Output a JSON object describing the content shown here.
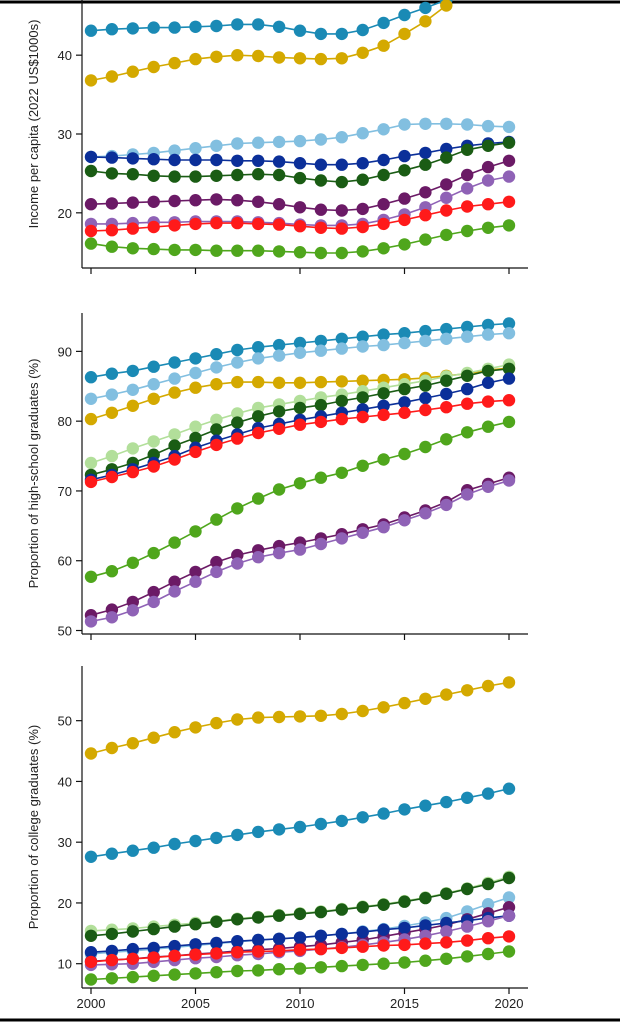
{
  "chart_data": [
    {
      "type": "line",
      "ylabel": "Income per capita (2022 US$1000s)",
      "ylim": [
        13,
        47
      ],
      "yticks": [
        20,
        30,
        40
      ],
      "xlim": [
        1999.3,
        2020.6
      ],
      "xticks": [
        2000,
        2005,
        2010,
        2015,
        2020
      ],
      "xtick_labels": [],
      "x": [
        2000,
        2001,
        2002,
        2003,
        2004,
        2005,
        2006,
        2007,
        2008,
        2009,
        2010,
        2011,
        2012,
        2013,
        2014,
        2015,
        2016,
        2017,
        2018,
        2019,
        2020
      ],
      "series": [
        {
          "color": "#1a8ab5",
          "values": [
            43.1,
            43.3,
            43.4,
            43.5,
            43.5,
            43.6,
            43.7,
            43.9,
            43.9,
            43.6,
            43.1,
            42.7,
            42.7,
            43.2,
            44.1,
            45.1,
            46.0,
            47.0,
            null,
            null,
            null
          ]
        },
        {
          "color": "#d4a900",
          "values": [
            36.8,
            37.3,
            37.9,
            38.5,
            39.0,
            39.5,
            39.8,
            40.0,
            39.9,
            39.7,
            39.6,
            39.5,
            39.6,
            40.3,
            41.2,
            42.7,
            44.3,
            46.3,
            null,
            null,
            null
          ]
        },
        {
          "color": "#82bfe0",
          "values": [
            27.1,
            27.2,
            27.4,
            27.6,
            27.9,
            28.2,
            28.5,
            28.8,
            28.9,
            29.0,
            29.1,
            29.3,
            29.6,
            30.1,
            30.6,
            31.2,
            31.3,
            31.3,
            31.2,
            31.0,
            30.9
          ]
        },
        {
          "color": "#0b2f99",
          "values": [
            27.1,
            27.0,
            26.9,
            26.8,
            26.7,
            26.7,
            26.7,
            26.6,
            26.6,
            26.5,
            26.3,
            26.1,
            26.1,
            26.3,
            26.7,
            27.2,
            27.6,
            28.1,
            28.5,
            28.8,
            29.0
          ]
        },
        {
          "color": "#1a5c14",
          "values": [
            25.3,
            25.0,
            24.9,
            24.7,
            24.6,
            24.6,
            24.7,
            24.8,
            24.9,
            24.8,
            24.4,
            24.1,
            23.9,
            24.2,
            24.8,
            25.4,
            26.1,
            27.0,
            28.0,
            28.5,
            28.9
          ]
        },
        {
          "color": "#6b1a66",
          "values": [
            21.1,
            21.2,
            21.3,
            21.4,
            21.5,
            21.6,
            21.7,
            21.6,
            21.4,
            21.1,
            20.7,
            20.4,
            20.3,
            20.5,
            21.1,
            21.8,
            22.6,
            23.6,
            24.8,
            25.8,
            26.6
          ]
        },
        {
          "color": "#8f62b6",
          "values": [
            18.6,
            18.6,
            18.7,
            18.8,
            18.8,
            18.9,
            18.9,
            18.9,
            18.8,
            18.7,
            18.5,
            18.4,
            18.4,
            18.6,
            19.1,
            19.8,
            20.7,
            21.9,
            23.1,
            24.1,
            24.6
          ]
        },
        {
          "color": "#ff1a1a",
          "values": [
            17.7,
            17.8,
            18.0,
            18.2,
            18.4,
            18.6,
            18.7,
            18.7,
            18.6,
            18.5,
            18.3,
            18.1,
            18.0,
            18.2,
            18.6,
            19.1,
            19.7,
            20.3,
            20.8,
            21.1,
            21.4
          ]
        },
        {
          "color": "#4fa61c",
          "values": [
            16.1,
            15.7,
            15.5,
            15.4,
            15.3,
            15.3,
            15.2,
            15.2,
            15.2,
            15.1,
            15.0,
            14.9,
            14.9,
            15.1,
            15.5,
            16.0,
            16.6,
            17.2,
            17.7,
            18.1,
            18.4
          ]
        }
      ]
    },
    {
      "type": "line",
      "ylabel": "Proportion of high-school graduates (%)",
      "ylim": [
        49.5,
        95.5
      ],
      "yticks": [
        50,
        60,
        70,
        80,
        90
      ],
      "xlim": [
        1999.3,
        2020.6
      ],
      "xticks": [
        2000,
        2005,
        2010,
        2015,
        2020
      ],
      "xtick_labels": [],
      "x": [
        2000,
        2001,
        2002,
        2003,
        2004,
        2005,
        2006,
        2007,
        2008,
        2009,
        2010,
        2011,
        2012,
        2013,
        2014,
        2015,
        2016,
        2017,
        2018,
        2019,
        2020
      ],
      "series": [
        {
          "color": "#1a8ab5",
          "values": [
            86.3,
            86.8,
            87.2,
            87.8,
            88.4,
            89.0,
            89.6,
            90.2,
            90.6,
            90.9,
            91.2,
            91.5,
            91.8,
            92.1,
            92.4,
            92.6,
            92.9,
            93.2,
            93.5,
            93.8,
            94.0
          ]
        },
        {
          "color": "#82bfe0",
          "values": [
            83.2,
            83.8,
            84.5,
            85.3,
            86.1,
            86.9,
            87.7,
            88.4,
            89.0,
            89.4,
            89.8,
            90.1,
            90.4,
            90.7,
            90.9,
            91.2,
            91.5,
            91.8,
            92.1,
            92.4,
            92.6
          ]
        },
        {
          "color": "#d4a900",
          "values": [
            80.3,
            81.2,
            82.2,
            83.2,
            84.1,
            84.8,
            85.3,
            85.6,
            85.6,
            85.5,
            85.5,
            85.6,
            85.7,
            85.8,
            85.9,
            86.0,
            86.2,
            86.5,
            86.8,
            87.3,
            87.6
          ]
        },
        {
          "color": "#b2df9a",
          "values": [
            74.0,
            75.0,
            76.1,
            77.1,
            78.1,
            79.2,
            80.2,
            81.1,
            81.9,
            82.4,
            82.9,
            83.4,
            83.8,
            84.3,
            84.8,
            85.3,
            85.8,
            86.4,
            86.9,
            87.5,
            88.1
          ]
        },
        {
          "color": "#1a5c14",
          "values": [
            72.3,
            73.1,
            74.0,
            75.2,
            76.5,
            77.6,
            78.8,
            79.8,
            80.7,
            81.4,
            81.9,
            82.3,
            82.9,
            83.4,
            84.0,
            84.6,
            85.1,
            85.8,
            86.5,
            87.2,
            87.5
          ]
        },
        {
          "color": "#0b2f99",
          "values": [
            71.6,
            72.3,
            73.1,
            74.0,
            75.0,
            76.2,
            77.2,
            78.1,
            79.0,
            79.6,
            80.2,
            80.7,
            81.2,
            81.7,
            82.2,
            82.7,
            83.3,
            83.9,
            84.6,
            85.5,
            86.1
          ]
        },
        {
          "color": "#ff1a1a",
          "values": [
            71.3,
            72.0,
            72.7,
            73.5,
            74.5,
            75.6,
            76.6,
            77.5,
            78.3,
            78.9,
            79.5,
            79.9,
            80.3,
            80.6,
            80.9,
            81.2,
            81.6,
            82.0,
            82.5,
            82.8,
            83.0
          ]
        },
        {
          "color": "#4fa61c",
          "values": [
            57.7,
            58.5,
            59.7,
            61.1,
            62.6,
            64.2,
            65.9,
            67.5,
            68.9,
            70.2,
            71.1,
            71.9,
            72.6,
            73.6,
            74.5,
            75.3,
            76.3,
            77.4,
            78.4,
            79.2,
            79.9
          ]
        },
        {
          "color": "#6b1a66",
          "values": [
            52.2,
            53.0,
            54.1,
            55.5,
            57.0,
            58.4,
            59.8,
            60.8,
            61.5,
            62.1,
            62.6,
            63.2,
            63.8,
            64.5,
            65.2,
            66.2,
            67.2,
            68.4,
            70.1,
            71.0,
            71.9
          ]
        },
        {
          "color": "#8f62b6",
          "values": [
            51.3,
            51.9,
            52.9,
            54.1,
            55.6,
            57.0,
            58.4,
            59.6,
            60.5,
            61.1,
            61.6,
            62.4,
            63.2,
            64.0,
            64.8,
            65.8,
            66.8,
            68.0,
            69.5,
            70.6,
            71.5
          ]
        }
      ]
    },
    {
      "type": "line",
      "ylabel": "Proportion of college graduates (%)",
      "ylim": [
        6,
        59
      ],
      "yticks": [
        10,
        20,
        30,
        40,
        50
      ],
      "xlim": [
        1999.3,
        2020.6
      ],
      "xticks": [
        2000,
        2005,
        2010,
        2015,
        2020
      ],
      "xtick_labels": [
        "2000",
        "2005",
        "2010",
        "2015",
        "2020"
      ],
      "x": [
        2000,
        2001,
        2002,
        2003,
        2004,
        2005,
        2006,
        2007,
        2008,
        2009,
        2010,
        2011,
        2012,
        2013,
        2014,
        2015,
        2016,
        2017,
        2018,
        2019,
        2020
      ],
      "series": [
        {
          "color": "#d4a900",
          "values": [
            44.6,
            45.5,
            46.3,
            47.2,
            48.1,
            48.9,
            49.6,
            50.2,
            50.5,
            50.6,
            50.7,
            50.8,
            51.1,
            51.6,
            52.2,
            52.9,
            53.6,
            54.3,
            55.0,
            55.7,
            56.3
          ]
        },
        {
          "color": "#1a8ab5",
          "values": [
            27.6,
            28.1,
            28.6,
            29.1,
            29.7,
            30.2,
            30.7,
            31.2,
            31.7,
            32.1,
            32.5,
            33.0,
            33.5,
            34.1,
            34.7,
            35.4,
            36.0,
            36.6,
            37.3,
            38.0,
            38.8
          ]
        },
        {
          "color": "#b2df9a",
          "values": [
            15.4,
            15.6,
            15.8,
            16.1,
            16.4,
            16.7,
            17.0,
            17.4,
            17.7,
            18.0,
            18.3,
            18.6,
            19.0,
            19.4,
            19.8,
            20.3,
            20.9,
            21.6,
            22.4,
            23.3,
            24.3
          ]
        },
        {
          "color": "#1a5c14",
          "values": [
            14.6,
            14.9,
            15.3,
            15.7,
            16.1,
            16.5,
            16.9,
            17.3,
            17.6,
            17.9,
            18.2,
            18.5,
            18.9,
            19.3,
            19.7,
            20.2,
            20.8,
            21.5,
            22.3,
            23.1,
            24.1
          ]
        },
        {
          "color": "#82bfe0",
          "values": [
            11.6,
            11.9,
            12.1,
            12.4,
            12.7,
            13.0,
            13.3,
            13.6,
            13.9,
            14.1,
            14.3,
            14.6,
            14.9,
            15.3,
            15.7,
            16.2,
            16.8,
            17.5,
            18.6,
            19.8,
            20.9
          ]
        },
        {
          "color": "#6b1a66",
          "values": [
            10.4,
            10.6,
            10.8,
            11.1,
            11.3,
            11.6,
            11.8,
            12.1,
            12.3,
            12.5,
            12.8,
            13.1,
            13.5,
            13.9,
            14.5,
            15.1,
            15.7,
            16.4,
            17.3,
            18.3,
            19.3
          ]
        },
        {
          "color": "#0b2f99",
          "values": [
            11.9,
            12.1,
            12.4,
            12.6,
            12.9,
            13.2,
            13.4,
            13.7,
            13.9,
            14.1,
            14.3,
            14.6,
            14.9,
            15.2,
            15.6,
            15.9,
            16.3,
            16.7,
            17.1,
            17.5,
            17.9
          ]
        },
        {
          "color": "#8f62b6",
          "values": [
            9.8,
            9.9,
            10.0,
            10.3,
            10.6,
            10.9,
            11.1,
            11.4,
            11.6,
            11.9,
            12.1,
            12.4,
            12.7,
            13.1,
            13.5,
            14.0,
            14.6,
            15.3,
            16.1,
            17.0,
            17.9
          ]
        },
        {
          "color": "#ff1a1a",
          "values": [
            10.3,
            10.6,
            10.8,
            11.0,
            11.3,
            11.5,
            11.7,
            11.9,
            12.0,
            12.1,
            12.3,
            12.4,
            12.6,
            12.8,
            13.0,
            13.1,
            13.3,
            13.5,
            13.8,
            14.2,
            14.5
          ]
        },
        {
          "color": "#4fa61c",
          "values": [
            7.4,
            7.6,
            7.8,
            8.0,
            8.2,
            8.4,
            8.6,
            8.8,
            8.9,
            9.1,
            9.2,
            9.4,
            9.6,
            9.8,
            10.0,
            10.2,
            10.5,
            10.8,
            11.2,
            11.6,
            12.0
          ]
        }
      ]
    }
  ]
}
